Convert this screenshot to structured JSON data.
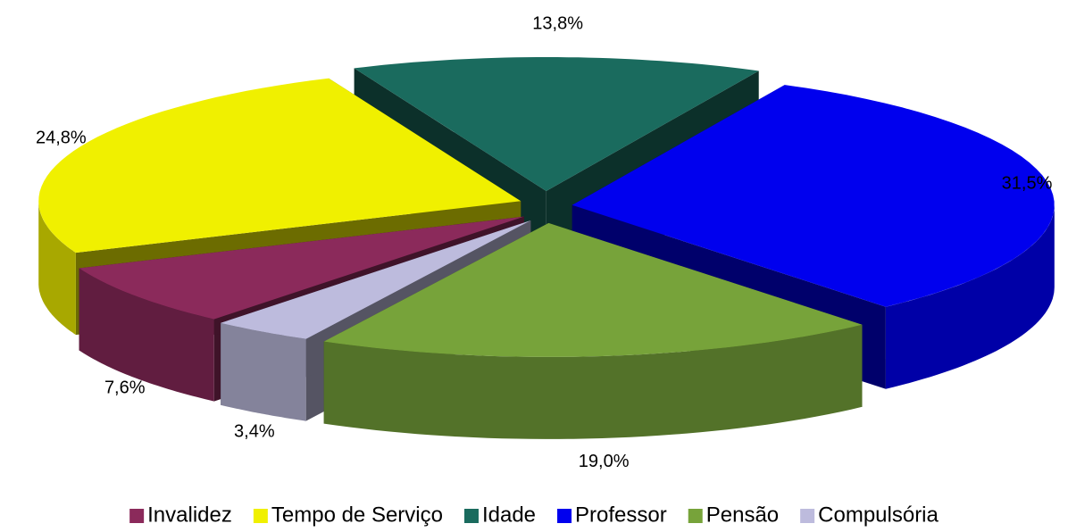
{
  "chart_data": {
    "type": "pie3d",
    "categories": [
      "Invalidez",
      "Tempo de Serviço",
      "Idade",
      "Professor",
      "Pensão",
      "Compulsória"
    ],
    "values": [
      7.6,
      24.8,
      13.8,
      31.5,
      19.0,
      3.4
    ],
    "value_labels": [
      "7,6%",
      "24,8%",
      "13,8%",
      "31,5%",
      "19,0%",
      "3,4%"
    ],
    "colors": [
      "#8B2A5B",
      "#F0F000",
      "#1A6B5E",
      "#0000EE",
      "#77A33A",
      "#BDBBDD"
    ],
    "legend": "bottom"
  }
}
